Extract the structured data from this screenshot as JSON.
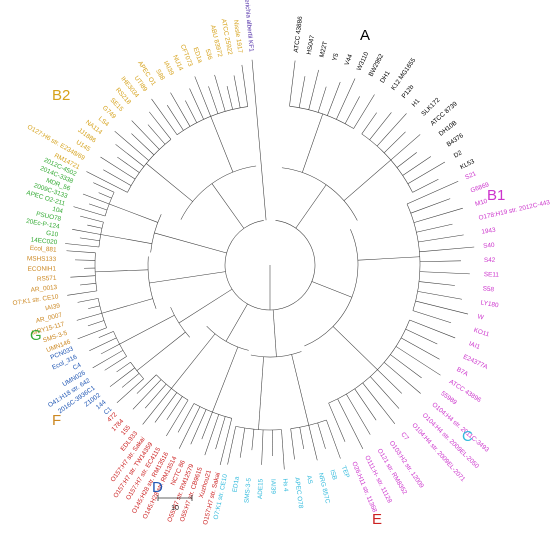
{
  "colors": {
    "A": "#000000",
    "B1": "#cc33cc",
    "C": "#33bbdd",
    "E": "#cc2222",
    "D": "#1f56b4",
    "F": "#cc8822",
    "G": "#33aa33",
    "B2": "#d6a21b",
    "outgroup": "#5533aa",
    "branch": "#3a3a3a"
  },
  "clades": [
    {
      "key": "A",
      "label": "A"
    },
    {
      "key": "B1",
      "label": "B1"
    },
    {
      "key": "C",
      "label": "C"
    },
    {
      "key": "E",
      "label": "E"
    },
    {
      "key": "D",
      "label": "D"
    },
    {
      "key": "F",
      "label": "F"
    },
    {
      "key": "G",
      "label": "G"
    },
    {
      "key": "B2",
      "label": "B2"
    }
  ],
  "outgroup": "Escherichia albertii KF1",
  "leaves": {
    "A": [
      "ATCC 43886",
      "HS047",
      "M22T",
      "Y5",
      "V44",
      "W3110",
      "BW2952",
      "DH1",
      "K12 MG1655",
      "P12b",
      "H1",
      "SLK172",
      "ATCC 8739",
      "DH10B",
      "B4376",
      "D2",
      "KL53"
    ],
    "B1": [
      "S21",
      "G6869",
      "M10",
      "O178:H19 str. 2012C-4431",
      "1943",
      "S40",
      "S42",
      "SE11",
      "S58",
      "LY180",
      "W",
      "KO11",
      "IAI1",
      "E24377A",
      "B7A",
      "ATCC 43896",
      "55989",
      "O104:H4 str. 2011C-3493",
      "O104:H4 str. 2009EL-2050",
      "O104:H4 str. 2009EL-2071",
      "C7",
      "O103:H2 str. 12009",
      "O121 str. RM8352",
      "O111:H- str. 11128",
      "O26:H11 str. 11368"
    ],
    "C": [
      "TEP",
      "ISB",
      "NRG 857C",
      "AS",
      "APEC O78",
      "Hs 4",
      "IAI39",
      "ADE15",
      "SMS-3-5",
      "ED1a",
      "O7:K1 str. CE10"
    ],
    "E": [
      "O157:H7 str. Sakai",
      "Xuzhou21",
      "O55:H7 str. CB9615",
      "O55:H7 str. RM12579",
      "NCTC 86",
      "O145:H28 str. RM13514",
      "O145:H28 str. RM13516",
      "O157:H7 str. EC4115",
      "O157:H7 str. TW14359",
      "O157:H7 str. Sakai",
      "EDL933",
      "155",
      "1784",
      "472"
    ],
    "D": [
      "C1",
      "144",
      "Z1002",
      "2016C-3936C1",
      "O41:H18 str. 642",
      "UMN026",
      "C4",
      "Ecol_316",
      "PCN033"
    ],
    "F": [
      "UMN146",
      "SMS-3-5",
      "MRY15-117",
      "AR_0007",
      "IAI39",
      "O7:K1 str. CE10",
      "AR_0013",
      "RS571",
      "ECONIH1",
      "MSHS133",
      "Ecol_881"
    ],
    "G": [
      "14EC020",
      "G10",
      "20Ec-P-124",
      "PSUO78",
      "104",
      "APEC O2-211",
      "2009C-3133",
      "MDR_56",
      "2014C-3338",
      "2012C-4502"
    ],
    "B2": [
      "RM14721",
      "O127:H6 str. E2348/69",
      "U145",
      "JJ1886",
      "NA114",
      "LS4",
      "G749",
      "SE15",
      "RS218",
      "IHE3034",
      "UTI89",
      "APEC O1",
      "S88",
      "IAI39",
      "NU14",
      "CFT073",
      "ED1a",
      "536",
      "ABU 83972",
      "ATCC 25922",
      "Nissle 1917"
    ]
  },
  "scale_bar": {
    "label": "10"
  }
}
